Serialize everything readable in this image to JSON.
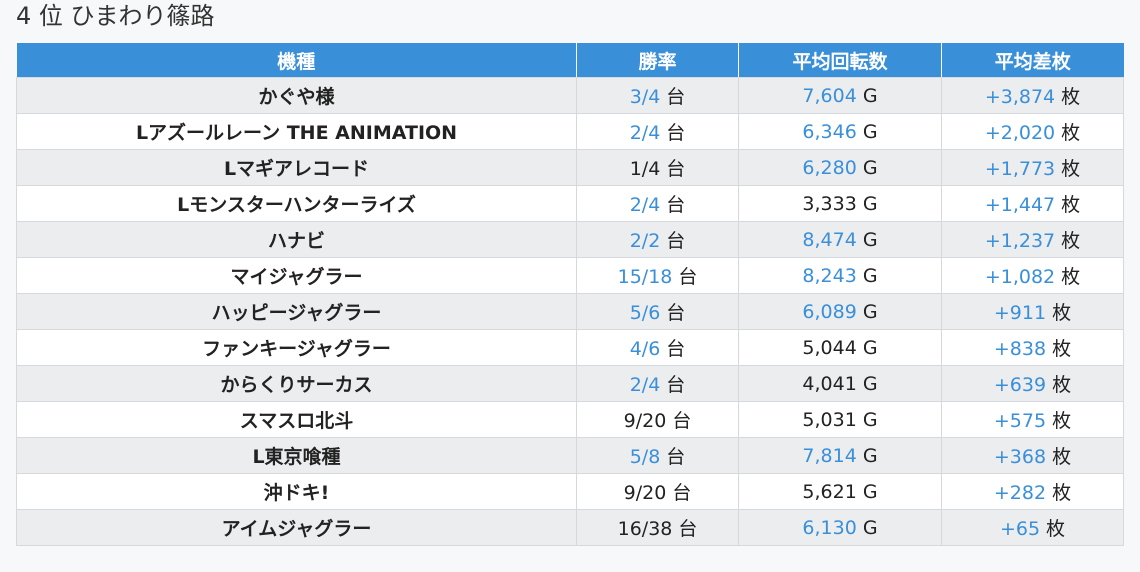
{
  "title": "4 位 ひまわり篠路",
  "columns": [
    "機種",
    "勝率",
    "平均回転数",
    "平均差枚"
  ],
  "units": {
    "win": "台",
    "spins": "G",
    "diff": "枚"
  },
  "colors": {
    "header_bg": "#3a8fd9",
    "highlight": "#3a8fd9",
    "stripe": "#ecedef"
  },
  "rows": [
    {
      "machine": "かぐや様",
      "win": "3/4",
      "win_hi": true,
      "spins": "7,604",
      "spins_hi": true,
      "diff": "+3,874",
      "diff_hi": true
    },
    {
      "machine": "Lアズールレーン THE ANIMATION",
      "win": "2/4",
      "win_hi": true,
      "spins": "6,346",
      "spins_hi": true,
      "diff": "+2,020",
      "diff_hi": true
    },
    {
      "machine": "Lマギアレコード",
      "win": "1/4",
      "win_hi": false,
      "spins": "6,280",
      "spins_hi": true,
      "diff": "+1,773",
      "diff_hi": true
    },
    {
      "machine": "Lモンスターハンターライズ",
      "win": "2/4",
      "win_hi": true,
      "spins": "3,333",
      "spins_hi": false,
      "diff": "+1,447",
      "diff_hi": true
    },
    {
      "machine": "ハナビ",
      "win": "2/2",
      "win_hi": true,
      "spins": "8,474",
      "spins_hi": true,
      "diff": "+1,237",
      "diff_hi": true
    },
    {
      "machine": "マイジャグラー",
      "win": "15/18",
      "win_hi": true,
      "spins": "8,243",
      "spins_hi": true,
      "diff": "+1,082",
      "diff_hi": true
    },
    {
      "machine": "ハッピージャグラー",
      "win": "5/6",
      "win_hi": true,
      "spins": "6,089",
      "spins_hi": true,
      "diff": "+911",
      "diff_hi": true
    },
    {
      "machine": "ファンキージャグラー",
      "win": "4/6",
      "win_hi": true,
      "spins": "5,044",
      "spins_hi": false,
      "diff": "+838",
      "diff_hi": true
    },
    {
      "machine": "からくりサーカス",
      "win": "2/4",
      "win_hi": true,
      "spins": "4,041",
      "spins_hi": false,
      "diff": "+639",
      "diff_hi": true
    },
    {
      "machine": "スマスロ北斗",
      "win": "9/20",
      "win_hi": false,
      "spins": "5,031",
      "spins_hi": false,
      "diff": "+575",
      "diff_hi": true
    },
    {
      "machine": "L東京喰種",
      "win": "5/8",
      "win_hi": true,
      "spins": "7,814",
      "spins_hi": true,
      "diff": "+368",
      "diff_hi": true
    },
    {
      "machine": "沖ドキ!",
      "win": "9/20",
      "win_hi": false,
      "spins": "5,621",
      "spins_hi": false,
      "diff": "+282",
      "diff_hi": true
    },
    {
      "machine": "アイムジャグラー",
      "win": "16/38",
      "win_hi": false,
      "spins": "6,130",
      "spins_hi": true,
      "diff": "+65",
      "diff_hi": true
    }
  ]
}
